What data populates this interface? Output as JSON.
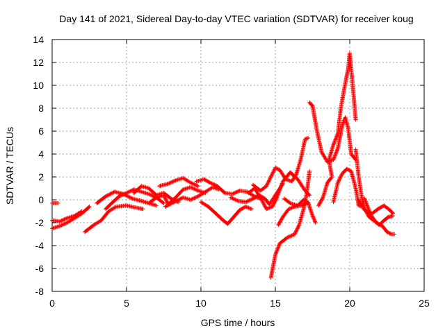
{
  "chart_data": {
    "type": "scatter",
    "title": "Day 141 of 2021, Sidereal Day-to-day VTEC variation (SDTVAR) for receiver koug",
    "xlabel": "GPS time / hours",
    "ylabel": "SDTVAR / TECUs",
    "xlim": [
      0,
      25
    ],
    "ylim": [
      -8,
      14
    ],
    "xticks": [
      0,
      5,
      10,
      15,
      20,
      25
    ],
    "yticks": [
      -8,
      -6,
      -4,
      -2,
      0,
      2,
      4,
      6,
      8,
      10,
      12,
      14
    ],
    "grid": true,
    "marker": "+",
    "series": [
      {
        "name": "SDTVAR",
        "color": "#ff0000",
        "tracks": [
          [
            [
              0.0,
              -0.3
            ],
            [
              0.4,
              -0.3
            ]
          ],
          [
            [
              0.0,
              -2.5
            ],
            [
              0.5,
              -2.3
            ],
            [
              1.0,
              -2.0
            ],
            [
              1.5,
              -1.6
            ],
            [
              2.0,
              -1.2
            ],
            [
              2.5,
              -0.6
            ]
          ],
          [
            [
              0.0,
              -1.8
            ],
            [
              0.5,
              -1.9
            ],
            [
              1.0,
              -1.6
            ],
            [
              1.5,
              -1.4
            ],
            [
              2.0,
              -1.0
            ]
          ],
          [
            [
              2.2,
              -2.8
            ],
            [
              2.8,
              -2.2
            ],
            [
              3.3,
              -1.8
            ],
            [
              3.8,
              -1.0
            ],
            [
              4.3,
              -0.6
            ],
            [
              5.0,
              -0.5
            ],
            [
              5.7,
              -0.7
            ],
            [
              6.1,
              -0.8
            ]
          ],
          [
            [
              3.6,
              -0.8
            ],
            [
              4.0,
              -0.3
            ],
            [
              4.5,
              0.3
            ],
            [
              5.0,
              0.6
            ],
            [
              5.5,
              0.9
            ],
            [
              6.0,
              0.7
            ],
            [
              6.5,
              0.5
            ],
            [
              7.0,
              0.2
            ],
            [
              7.5,
              -0.3
            ]
          ],
          [
            [
              3.0,
              -0.3
            ],
            [
              3.6,
              0.3
            ],
            [
              4.2,
              0.7
            ],
            [
              4.8,
              0.5
            ],
            [
              5.4,
              0.1
            ],
            [
              6.0,
              -0.1
            ],
            [
              6.5,
              -0.3
            ],
            [
              7.0,
              -0.5
            ]
          ],
          [
            [
              5.5,
              0.6
            ],
            [
              6.0,
              1.2
            ],
            [
              6.5,
              1.0
            ],
            [
              7.0,
              0.4
            ],
            [
              7.5,
              0.6
            ],
            [
              8.0,
              0.1
            ],
            [
              8.5,
              -0.2
            ]
          ],
          [
            [
              6.5,
              -0.3
            ],
            [
              7.0,
              0.2
            ],
            [
              7.5,
              0.4
            ],
            [
              7.8,
              -0.4
            ],
            [
              8.3,
              0.2
            ],
            [
              8.8,
              0.9
            ],
            [
              9.3,
              1.1
            ],
            [
              9.8,
              0.8
            ],
            [
              10.3,
              0.6
            ]
          ],
          [
            [
              7.2,
              1.2
            ],
            [
              7.8,
              1.4
            ],
            [
              8.3,
              1.7
            ],
            [
              8.8,
              1.9
            ],
            [
              9.3,
              1.5
            ],
            [
              9.8,
              1.2
            ]
          ],
          [
            [
              7.6,
              -0.6
            ],
            [
              8.2,
              -0.2
            ],
            [
              8.8,
              0.2
            ],
            [
              9.3,
              0.0
            ],
            [
              9.8,
              0.3
            ],
            [
              10.3,
              0.7
            ],
            [
              10.8,
              1.1
            ],
            [
              11.2,
              0.9
            ]
          ],
          [
            [
              9.7,
              1.6
            ],
            [
              10.2,
              1.8
            ],
            [
              10.6,
              1.5
            ],
            [
              11.1,
              1.2
            ],
            [
              11.6,
              0.6
            ],
            [
              12.1,
              0.5
            ],
            [
              12.6,
              0.8
            ],
            [
              13.1,
              0.7
            ],
            [
              13.6,
              0.3
            ],
            [
              14.0,
              0.1
            ]
          ],
          [
            [
              10.0,
              -0.2
            ],
            [
              10.5,
              -0.6
            ],
            [
              11.0,
              -1.2
            ],
            [
              11.5,
              -1.8
            ],
            [
              11.8,
              -2.1
            ],
            [
              12.2,
              -1.5
            ],
            [
              12.6,
              -0.9
            ],
            [
              13.0,
              -0.6
            ],
            [
              13.4,
              -0.8
            ]
          ],
          [
            [
              12.0,
              0.2
            ],
            [
              12.5,
              -0.1
            ],
            [
              13.0,
              -0.2
            ],
            [
              13.5,
              0.1
            ],
            [
              13.9,
              0.4
            ],
            [
              14.3,
              0.1
            ],
            [
              14.6,
              -0.4
            ],
            [
              15.0,
              0.4
            ],
            [
              15.5,
              1.4
            ]
          ],
          [
            [
              13.2,
              0.6
            ],
            [
              13.6,
              1.0
            ],
            [
              14.0,
              0.2
            ],
            [
              14.4,
              -0.8
            ],
            [
              14.8,
              -0.6
            ],
            [
              15.1,
              0.2
            ],
            [
              15.5,
              1.6
            ],
            [
              16.0,
              2.4
            ],
            [
              16.5,
              1.8
            ],
            [
              17.0,
              0.8
            ],
            [
              17.3,
              0.4
            ]
          ],
          [
            [
              13.5,
              1.3
            ],
            [
              14.0,
              0.8
            ],
            [
              14.4,
              1.2
            ],
            [
              14.7,
              2.0
            ],
            [
              15.0,
              2.8
            ],
            [
              15.3,
              2.6
            ],
            [
              15.7,
              1.8
            ],
            [
              16.1,
              1.6
            ],
            [
              16.4,
              2.2
            ],
            [
              16.7,
              3.5
            ],
            [
              17.0,
              5.3
            ],
            [
              17.2,
              5.4
            ]
          ],
          [
            [
              14.7,
              -6.8
            ],
            [
              15.0,
              -4.8
            ],
            [
              15.3,
              -3.8
            ],
            [
              15.8,
              -3.3
            ],
            [
              16.3,
              -3.0
            ],
            [
              16.6,
              -2.2
            ],
            [
              16.9,
              -0.8
            ],
            [
              17.1,
              0.5
            ],
            [
              17.3,
              2.5
            ]
          ],
          [
            [
              15.2,
              -2.2
            ],
            [
              15.5,
              -1.5
            ],
            [
              15.9,
              -0.8
            ],
            [
              16.3,
              -0.6
            ],
            [
              16.8,
              -0.5
            ],
            [
              17.2,
              -0.2
            ],
            [
              17.5,
              -1.4
            ],
            [
              17.7,
              -2.0
            ]
          ],
          [
            [
              15.6,
              0.1
            ],
            [
              16.0,
              -0.3
            ],
            [
              16.5,
              -0.5
            ],
            [
              16.9,
              0.0
            ],
            [
              17.2,
              -0.3
            ]
          ],
          [
            [
              17.3,
              8.5
            ],
            [
              17.5,
              8.2
            ],
            [
              17.8,
              6.0
            ],
            [
              18.1,
              4.2
            ],
            [
              18.5,
              3.3
            ],
            [
              18.9,
              3.5
            ],
            [
              19.2,
              4.5
            ],
            [
              19.5,
              6.5
            ],
            [
              19.7,
              7.2
            ],
            [
              19.9,
              6.2
            ],
            [
              20.1,
              4.0
            ],
            [
              20.4,
              3.5
            ]
          ],
          [
            [
              17.9,
              -0.5
            ],
            [
              18.2,
              0.2
            ],
            [
              18.5,
              1.5
            ],
            [
              18.8,
              2.0
            ],
            [
              18.6,
              3.5
            ],
            [
              18.9,
              4.8
            ],
            [
              19.2,
              5.8
            ],
            [
              19.4,
              8.0
            ],
            [
              19.6,
              9.5
            ],
            [
              19.9,
              11.5
            ],
            [
              20.0,
              12.8
            ],
            [
              20.2,
              10.0
            ],
            [
              20.4,
              7.0
            ]
          ],
          [
            [
              18.9,
              -0.2
            ],
            [
              19.2,
              1.5
            ],
            [
              19.5,
              2.3
            ],
            [
              19.8,
              2.7
            ],
            [
              20.1,
              2.5
            ],
            [
              20.4,
              1.0
            ],
            [
              20.6,
              -0.5
            ],
            [
              20.8,
              -0.6
            ]
          ],
          [
            [
              20.4,
              4.4
            ],
            [
              20.6,
              2.0
            ],
            [
              20.8,
              0.3
            ],
            [
              21.0,
              -0.8
            ],
            [
              21.3,
              -1.5
            ],
            [
              21.7,
              -1.9
            ],
            [
              22.0,
              -2.2
            ],
            [
              22.3,
              -1.8
            ],
            [
              22.6,
              -1.5
            ],
            [
              22.9,
              -1.4
            ]
          ],
          [
            [
              20.6,
              0.0
            ],
            [
              21.0,
              -0.9
            ],
            [
              21.5,
              -1.2
            ],
            [
              21.9,
              -0.8
            ],
            [
              22.3,
              -0.5
            ],
            [
              22.7,
              -0.9
            ],
            [
              22.9,
              -1.2
            ]
          ],
          [
            [
              21.0,
              0.1
            ],
            [
              21.4,
              -1.3
            ],
            [
              21.8,
              -2.0
            ],
            [
              22.2,
              -2.3
            ],
            [
              22.5,
              -2.8
            ],
            [
              22.8,
              -3.0
            ],
            [
              23.0,
              -3.0
            ]
          ]
        ]
      }
    ]
  }
}
